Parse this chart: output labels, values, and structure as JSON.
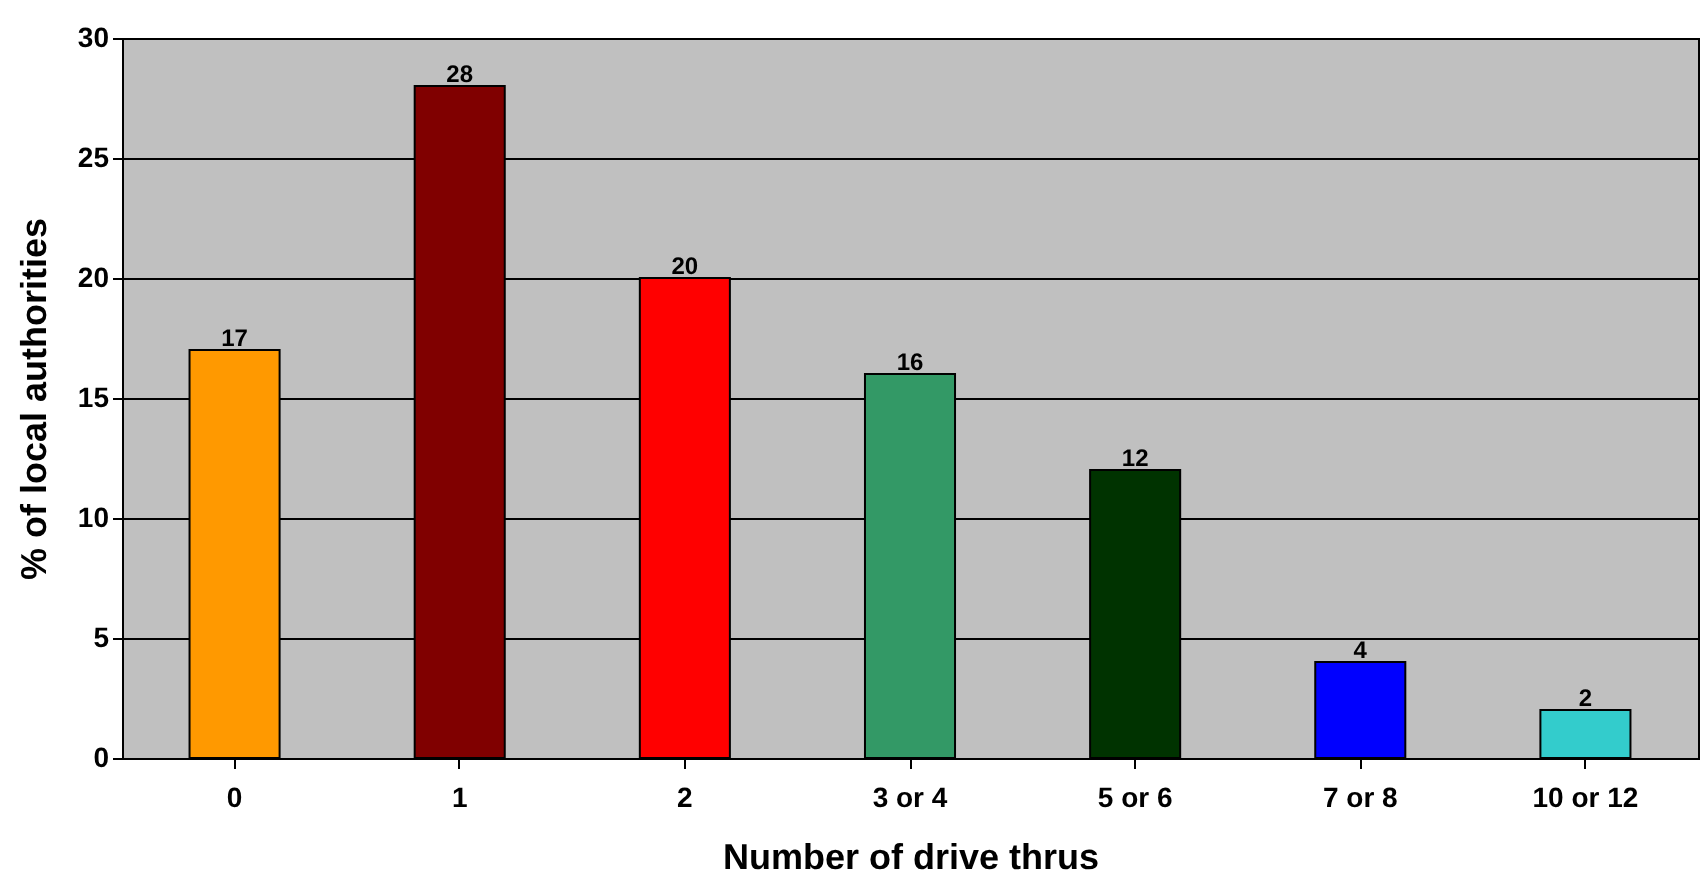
{
  "chart_data": {
    "type": "bar",
    "xlabel": "Number of drive thrus",
    "ylabel": "% of local authorities",
    "categories": [
      "0",
      "1",
      "2",
      "3 or 4",
      "5 or 6",
      "7 or 8",
      "10 or 12"
    ],
    "values": [
      17,
      28,
      20,
      16,
      12,
      4,
      2
    ],
    "colors": [
      "#ff9900",
      "#800000",
      "#ff0000",
      "#339966",
      "#003300",
      "#0000ff",
      "#33cccc"
    ],
    "ylim": [
      0,
      30
    ],
    "yticks": [
      0,
      5,
      10,
      15,
      20,
      25,
      30
    ],
    "grid": "y",
    "data_labels": true,
    "legend": false
  }
}
